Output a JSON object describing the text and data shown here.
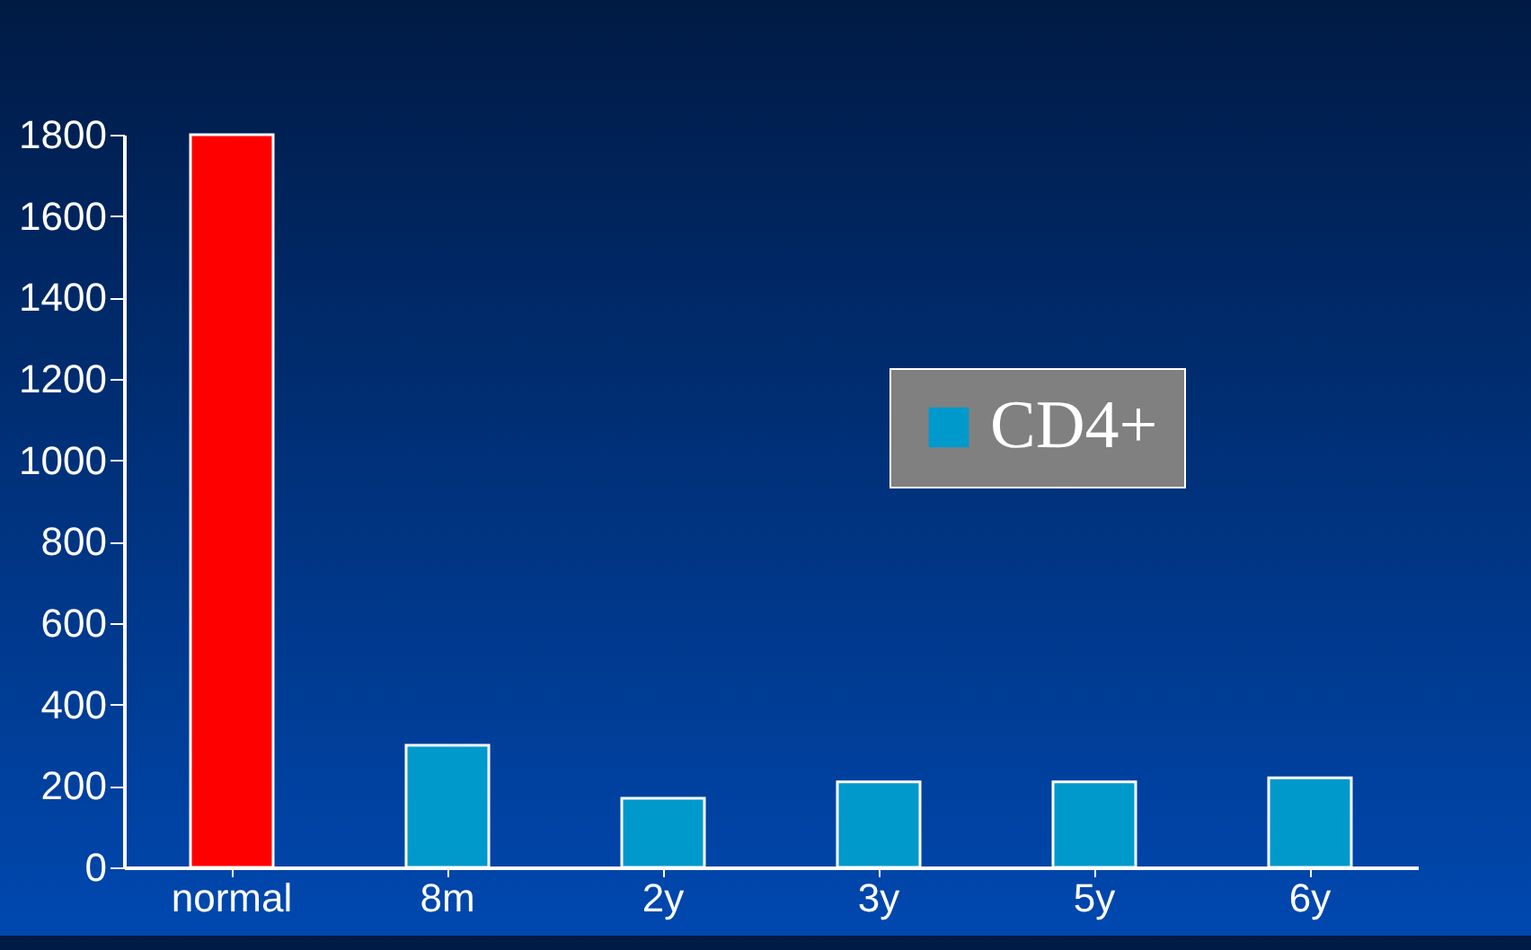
{
  "chart_data": {
    "type": "bar",
    "categories": [
      "normal",
      "8m",
      "2y",
      "3y",
      "5y",
      "6y"
    ],
    "series": [
      {
        "name": "CD4+",
        "color": "#0099cc",
        "colors": [
          "#ff0000",
          "#0099cc",
          "#0099cc",
          "#0099cc",
          "#0099cc",
          "#0099cc"
        ],
        "values": [
          1800,
          300,
          170,
          210,
          210,
          220
        ]
      }
    ],
    "ylim": [
      0,
      1800
    ],
    "yticks": [
      0,
      200,
      400,
      600,
      800,
      1000,
      1200,
      1400,
      1600,
      1800
    ],
    "grid": false,
    "legend": "top right"
  }
}
